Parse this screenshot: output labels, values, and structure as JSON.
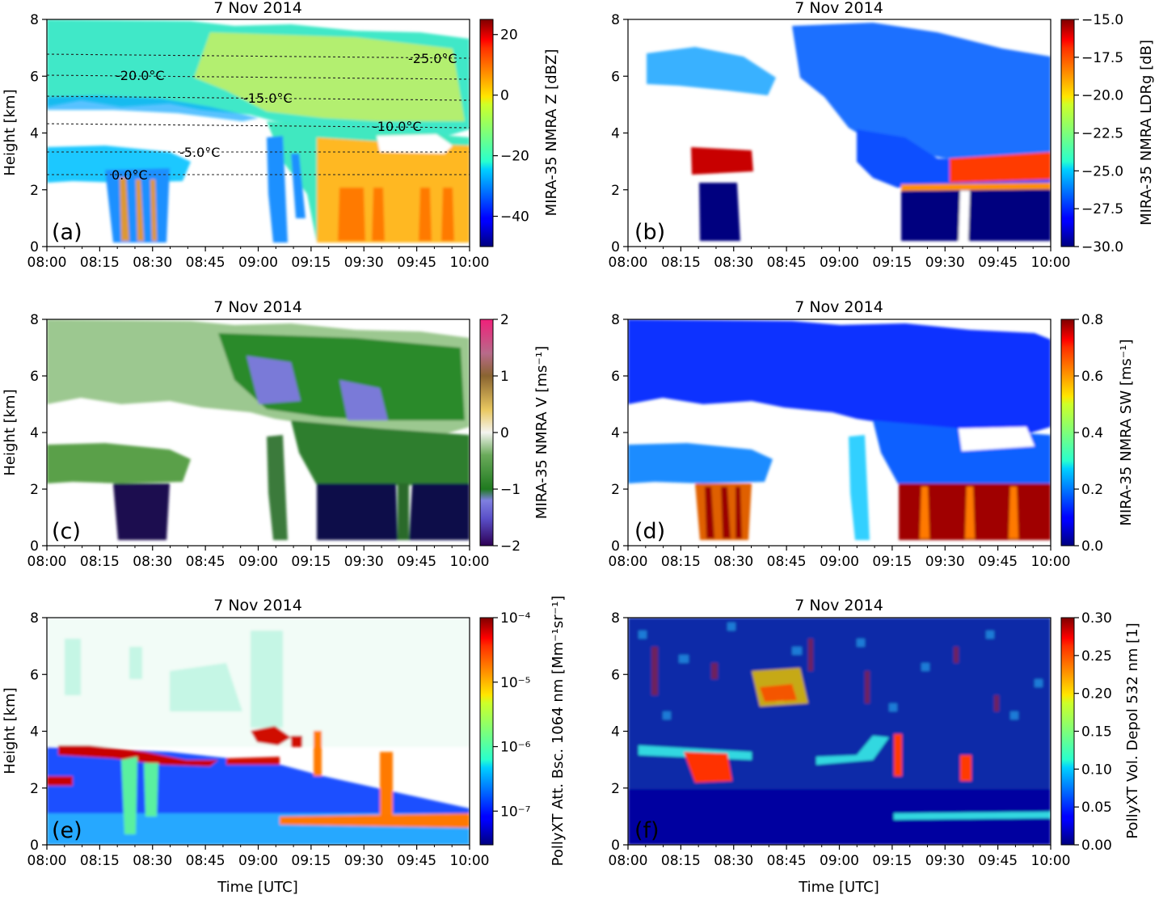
{
  "chart_data": [
    {
      "type": "heatmap",
      "panel": "(a)",
      "title": "7 Nov 2014",
      "xlabel": "",
      "ylabel": "Height [km]",
      "x_ticks": [
        "08:00",
        "08:15",
        "08:30",
        "08:45",
        "09:00",
        "09:15",
        "09:30",
        "09:45",
        "10:00"
      ],
      "xlim": [
        "08:00",
        "10:00"
      ],
      "ylim": [
        0,
        8
      ],
      "y_ticks": [
        "0",
        "2",
        "4",
        "6",
        "8"
      ],
      "colorbar": {
        "label": "MIRA-35 NMRA Z [dBZ]",
        "colormap": "jet",
        "scale": "linear",
        "range": [
          -50,
          25
        ],
        "ticks": [
          {
            "label": "20",
            "value": 20
          },
          {
            "label": "0",
            "value": 0
          },
          {
            "label": "−20",
            "value": -20
          },
          {
            "label": "−40",
            "value": -40
          }
        ]
      },
      "isotherms": [
        {
          "label": "-25.0°C",
          "height_km": 6.8
        },
        {
          "label": "-20.0°C",
          "height_km": 6.05
        },
        {
          "label": "-15.0°C",
          "height_km": 5.25
        },
        {
          "label": "-10.0°C",
          "height_km": 4.3
        },
        {
          "label": "-5.0°C",
          "height_km": 3.3
        },
        {
          "label": "0.0°C",
          "height_km": 2.55
        }
      ]
    },
    {
      "type": "heatmap",
      "panel": "(b)",
      "title": "7 Nov 2014",
      "xlabel": "",
      "ylabel": "",
      "x_ticks": [
        "08:00",
        "08:15",
        "08:30",
        "08:45",
        "09:00",
        "09:15",
        "09:30",
        "09:45",
        "10:00"
      ],
      "xlim": [
        "08:00",
        "10:00"
      ],
      "ylim": [
        0,
        8
      ],
      "y_ticks": [
        "0",
        "2",
        "4",
        "6",
        "8"
      ],
      "colorbar": {
        "label": "MIRA-35 NMRA LDRg [dB]",
        "colormap": "jet",
        "scale": "linear",
        "range": [
          -30,
          -15
        ],
        "ticks": [
          {
            "label": "−15.0",
            "value": -15
          },
          {
            "label": "−17.5",
            "value": -17.5
          },
          {
            "label": "−20.0",
            "value": -20
          },
          {
            "label": "−22.5",
            "value": -22.5
          },
          {
            "label": "−25.0",
            "value": -25
          },
          {
            "label": "−27.5",
            "value": -27.5
          },
          {
            "label": "−30.0",
            "value": -30
          }
        ]
      }
    },
    {
      "type": "heatmap",
      "panel": "(c)",
      "title": "7 Nov 2014",
      "xlabel": "",
      "ylabel": "Height [km]",
      "x_ticks": [
        "08:00",
        "08:15",
        "08:30",
        "08:45",
        "09:00",
        "09:15",
        "09:30",
        "09:45",
        "10:00"
      ],
      "xlim": [
        "08:00",
        "10:00"
      ],
      "ylim": [
        0,
        8
      ],
      "y_ticks": [
        "0",
        "2",
        "4",
        "6",
        "8"
      ],
      "colorbar": {
        "label": "MIRA-35 NMRA V [ms⁻¹]",
        "colormap": "diverging",
        "scale": "linear",
        "range": [
          -2,
          2
        ],
        "ticks": [
          {
            "label": "2",
            "value": 2
          },
          {
            "label": "1",
            "value": 1
          },
          {
            "label": "0",
            "value": 0
          },
          {
            "label": "−1",
            "value": -1
          },
          {
            "label": "−2",
            "value": -2
          }
        ]
      }
    },
    {
      "type": "heatmap",
      "panel": "(d)",
      "title": "7 Nov 2014",
      "xlabel": "",
      "ylabel": "",
      "x_ticks": [
        "08:00",
        "08:15",
        "08:30",
        "08:45",
        "09:00",
        "09:15",
        "09:30",
        "09:45",
        "10:00"
      ],
      "xlim": [
        "08:00",
        "10:00"
      ],
      "ylim": [
        0,
        8
      ],
      "y_ticks": [
        "0",
        "2",
        "4",
        "6",
        "8"
      ],
      "colorbar": {
        "label": "MIRA-35 NMRA SW  [ms⁻¹]",
        "colormap": "jet",
        "scale": "linear",
        "range": [
          0,
          0.8
        ],
        "ticks": [
          {
            "label": "0.8",
            "value": 0.8
          },
          {
            "label": "0.6",
            "value": 0.6
          },
          {
            "label": "0.4",
            "value": 0.4
          },
          {
            "label": "0.2",
            "value": 0.2
          },
          {
            "label": "0.0",
            "value": 0
          }
        ]
      }
    },
    {
      "type": "heatmap",
      "panel": "(e)",
      "title": "7 Nov 2014",
      "xlabel": "Time [UTC]",
      "ylabel": "Height [km]",
      "x_ticks": [
        "08:00",
        "08:15",
        "08:30",
        "08:45",
        "09:00",
        "09:15",
        "09:30",
        "09:45",
        "10:00"
      ],
      "xlim": [
        "08:00",
        "10:00"
      ],
      "ylim": [
        0,
        8
      ],
      "y_ticks": [
        "0",
        "2",
        "4",
        "6",
        "8"
      ],
      "colorbar": {
        "label": "PollyXT Att. Bsc. 1064 nm [Mm⁻¹sr⁻¹]",
        "colormap": "jet",
        "scale": "log",
        "range": [
          3e-08,
          0.0001
        ],
        "ticks": [
          {
            "label": "10⁻⁴",
            "value": 0.0001
          },
          {
            "label": "10⁻⁵",
            "value": 1e-05
          },
          {
            "label": "10⁻⁶",
            "value": 1e-06
          },
          {
            "label": "10⁻⁷",
            "value": 1e-07
          }
        ]
      }
    },
    {
      "type": "heatmap",
      "panel": "(f)",
      "title": "7 Nov 2014",
      "xlabel": "Time [UTC]",
      "ylabel": "",
      "x_ticks": [
        "08:00",
        "08:15",
        "08:30",
        "08:45",
        "09:00",
        "09:15",
        "09:30",
        "09:45",
        "10:00"
      ],
      "xlim": [
        "08:00",
        "10:00"
      ],
      "ylim": [
        0,
        8
      ],
      "y_ticks": [
        "0",
        "2",
        "4",
        "6",
        "8"
      ],
      "colorbar": {
        "label": "PollyXT Vol. Depol 532 nm [1]",
        "colormap": "jet",
        "scale": "linear",
        "range": [
          0,
          0.3
        ],
        "ticks": [
          {
            "label": "0.30",
            "value": 0.3
          },
          {
            "label": "0.25",
            "value": 0.25
          },
          {
            "label": "0.20",
            "value": 0.2
          },
          {
            "label": "0.15",
            "value": 0.15
          },
          {
            "label": "0.10",
            "value": 0.1
          },
          {
            "label": "0.05",
            "value": 0.05
          },
          {
            "label": "0.00",
            "value": 0
          }
        ]
      }
    }
  ]
}
